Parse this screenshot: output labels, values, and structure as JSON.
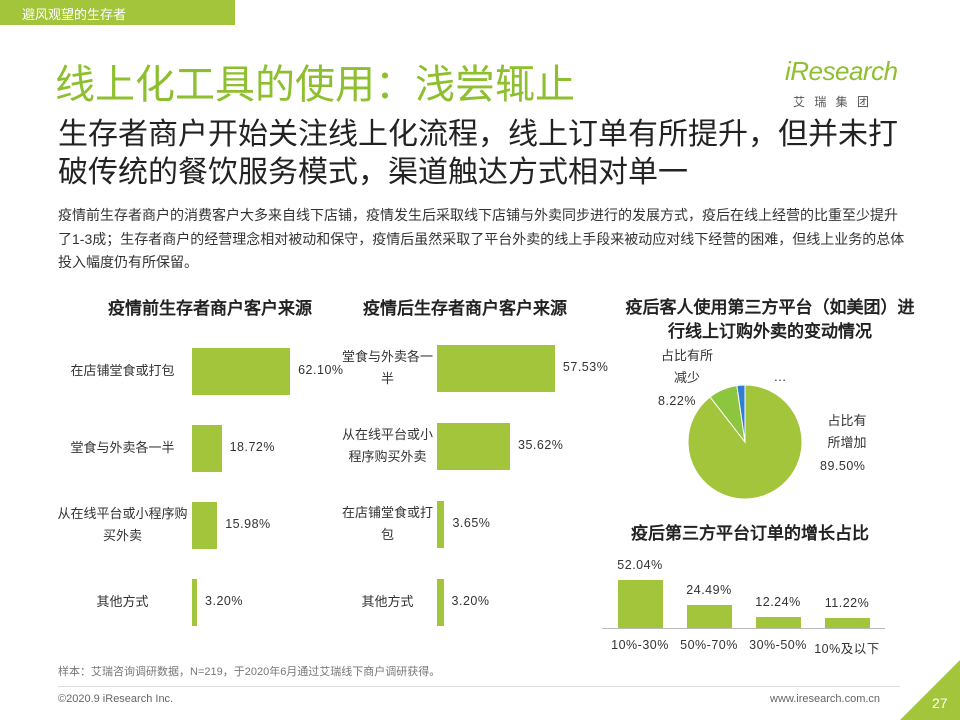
{
  "header": {
    "tag": "避风观望的生存者",
    "title": "线上化工具的使用：浅尝辄止",
    "subtitle": "生存者商户开始关注线上化流程，线上订单有所提升，但并未打破传统的餐饮服务模式，渠道触达方式相对单一",
    "body": "疫情前生存者商户的消费客户大多来自线下店铺，疫情发生后采取线下店铺与外卖同步进行的发展方式，疫后在线上经营的比重至少提升了1-3成；生存者商户的经营理念相对被动和保守，疫情后虽然采取了平台外卖的线上手段来被动应对线下经营的困难，但线上业务的总体投入幅度仍有所保留。"
  },
  "logo": {
    "name": "iResearch",
    "sub": "艾 瑞 集 团"
  },
  "chart_data": [
    {
      "type": "hbar",
      "title": "疫情前生存者商户客户来源",
      "categories": [
        "在店铺堂食或打包",
        "堂食与外卖各一半",
        "从在线平台或小程序购买外卖",
        "其他方式"
      ],
      "values": [
        62.1,
        18.72,
        15.98,
        3.2
      ],
      "value_labels": [
        "62.10%",
        "18.72%",
        "15.98%",
        "3.20%"
      ],
      "color": "#a2c53b"
    },
    {
      "type": "hbar",
      "title": "疫情后生存者商户客户来源",
      "categories": [
        "堂食与外卖各一半",
        "从在线平台或小程序购买外卖",
        "在店铺堂食或打包",
        "其他方式"
      ],
      "values": [
        57.53,
        35.62,
        3.65,
        3.2
      ],
      "value_labels": [
        "57.53%",
        "35.62%",
        "3.65%",
        "3.20%"
      ],
      "color": "#a2c53b"
    },
    {
      "type": "pie",
      "title": "疫后客人使用第三方平台（如美团）进行线上订购外卖的变动情况",
      "categories": [
        "占比有所增加",
        "占比有所减少",
        "…"
      ],
      "values": [
        89.5,
        8.22,
        2.28
      ],
      "value_labels": [
        "89.50%",
        "8.22%",
        null
      ],
      "colors": [
        "#a2c53b",
        "#8cc63f",
        "#2f7fd0"
      ]
    },
    {
      "type": "bar",
      "title": "疫后第三方平台订单的增长占比",
      "categories": [
        "10%-30%",
        "50%-70%",
        "30%-50%",
        "10%及以下"
      ],
      "values": [
        52.04,
        24.49,
        12.24,
        11.22
      ],
      "value_labels": [
        "52.04%",
        "24.49%",
        "12.24%",
        "11.22%"
      ],
      "color": "#a2c53b"
    }
  ],
  "footer": {
    "note": "样本：艾瑞咨询调研数据，N=219，于2020年6月通过艾瑞线下商户调研获得。",
    "copyright": "©2020.9 iResearch Inc.",
    "url": "www.iresearch.com.cn",
    "page": "27"
  }
}
